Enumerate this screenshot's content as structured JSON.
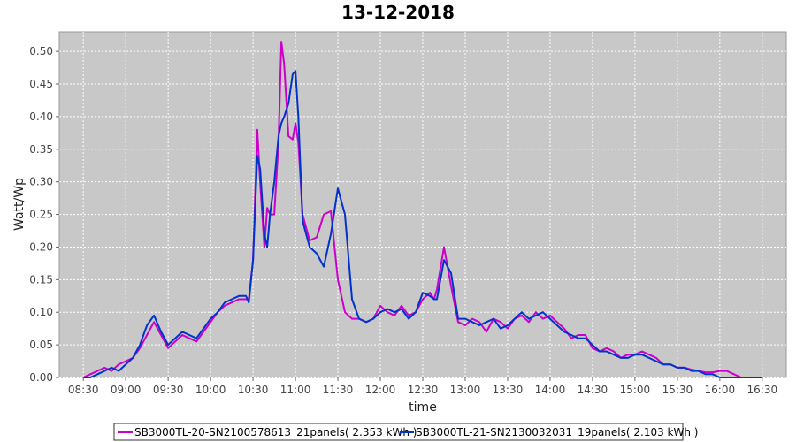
{
  "chart_data": {
    "type": "line",
    "title": "13-12-2018",
    "xlabel": "time",
    "ylabel": "Watt/Wp",
    "x_ticks": [
      "08:30",
      "09:00",
      "09:30",
      "10:00",
      "10:30",
      "11:00",
      "11:30",
      "12:00",
      "12:30",
      "13:00",
      "13:30",
      "14:00",
      "14:30",
      "15:00",
      "15:30",
      "16:00",
      "16:30"
    ],
    "xlim": [
      "08:30",
      "16:30"
    ],
    "y_ticks": [
      "0.00",
      "0.05",
      "0.10",
      "0.15",
      "0.20",
      "0.25",
      "0.30",
      "0.35",
      "0.40",
      "0.45",
      "0.50"
    ],
    "ylim": [
      0,
      0.53
    ],
    "grid": true,
    "legend_position": "bottom-center",
    "colors": {
      "plot_background": "#c8c8c8",
      "grid": "#ffffff"
    },
    "series": [
      {
        "name": "SB3000TL-20-SN2100578613_21panels( 2.353 kWh )",
        "color": "#cc00cc",
        "x": [
          "08:30",
          "08:35",
          "08:40",
          "08:45",
          "08:50",
          "08:55",
          "09:00",
          "09:05",
          "09:10",
          "09:15",
          "09:20",
          "09:25",
          "09:30",
          "09:35",
          "09:40",
          "09:45",
          "09:50",
          "09:55",
          "10:00",
          "10:05",
          "10:10",
          "10:15",
          "10:20",
          "10:25",
          "10:27",
          "10:30",
          "10:33",
          "10:35",
          "10:38",
          "10:40",
          "10:42",
          "10:45",
          "10:48",
          "10:50",
          "10:52",
          "10:55",
          "10:58",
          "11:00",
          "11:02",
          "11:05",
          "11:10",
          "11:15",
          "11:20",
          "11:25",
          "11:30",
          "11:35",
          "11:40",
          "11:45",
          "11:50",
          "11:55",
          "12:00",
          "12:05",
          "12:10",
          "12:15",
          "12:20",
          "12:25",
          "12:30",
          "12:35",
          "12:38",
          "12:40",
          "12:45",
          "12:50",
          "12:55",
          "13:00",
          "13:05",
          "13:10",
          "13:15",
          "13:20",
          "13:25",
          "13:30",
          "13:35",
          "13:40",
          "13:45",
          "13:50",
          "13:55",
          "14:00",
          "14:05",
          "14:10",
          "14:15",
          "14:20",
          "14:25",
          "14:30",
          "14:35",
          "14:40",
          "14:45",
          "14:50",
          "14:55",
          "15:00",
          "15:05",
          "15:10",
          "15:15",
          "15:20",
          "15:25",
          "15:30",
          "15:35",
          "15:40",
          "15:45",
          "15:50",
          "15:55",
          "16:00",
          "16:05",
          "16:10",
          "16:15",
          "16:20",
          "16:25",
          "16:30"
        ],
        "values": [
          0.0,
          0.005,
          0.01,
          0.015,
          0.01,
          0.02,
          0.025,
          0.03,
          0.045,
          0.065,
          0.085,
          0.065,
          0.045,
          0.055,
          0.065,
          0.06,
          0.055,
          0.07,
          0.085,
          0.1,
          0.11,
          0.115,
          0.12,
          0.12,
          0.12,
          0.18,
          0.38,
          0.3,
          0.2,
          0.26,
          0.25,
          0.25,
          0.36,
          0.515,
          0.48,
          0.37,
          0.365,
          0.39,
          0.36,
          0.25,
          0.21,
          0.215,
          0.25,
          0.255,
          0.15,
          0.1,
          0.09,
          0.09,
          0.085,
          0.09,
          0.11,
          0.1,
          0.095,
          0.11,
          0.095,
          0.1,
          0.12,
          0.13,
          0.12,
          0.135,
          0.2,
          0.14,
          0.085,
          0.08,
          0.09,
          0.085,
          0.07,
          0.09,
          0.085,
          0.075,
          0.09,
          0.095,
          0.085,
          0.1,
          0.09,
          0.095,
          0.085,
          0.075,
          0.06,
          0.065,
          0.065,
          0.045,
          0.04,
          0.045,
          0.04,
          0.03,
          0.035,
          0.035,
          0.04,
          0.035,
          0.03,
          0.02,
          0.02,
          0.015,
          0.015,
          0.012,
          0.01,
          0.008,
          0.008,
          0.01,
          0.01,
          0.005,
          0.0,
          0.0,
          0.0,
          0.0
        ]
      },
      {
        "name": "SB3000TL-21-SN2130032031_19panels( 2.103 kWh )",
        "color": "#0033cc",
        "x": [
          "08:30",
          "08:35",
          "08:40",
          "08:45",
          "08:50",
          "08:55",
          "09:00",
          "09:05",
          "09:10",
          "09:15",
          "09:20",
          "09:25",
          "09:30",
          "09:35",
          "09:40",
          "09:45",
          "09:50",
          "09:55",
          "10:00",
          "10:05",
          "10:10",
          "10:15",
          "10:20",
          "10:25",
          "10:27",
          "10:30",
          "10:33",
          "10:35",
          "10:38",
          "10:40",
          "10:42",
          "10:45",
          "10:48",
          "10:50",
          "10:52",
          "10:55",
          "10:58",
          "11:00",
          "11:02",
          "11:05",
          "11:10",
          "11:15",
          "11:20",
          "11:25",
          "11:30",
          "11:35",
          "11:40",
          "11:45",
          "11:50",
          "11:55",
          "12:00",
          "12:05",
          "12:10",
          "12:15",
          "12:20",
          "12:25",
          "12:30",
          "12:35",
          "12:38",
          "12:40",
          "12:45",
          "12:50",
          "12:55",
          "13:00",
          "13:05",
          "13:10",
          "13:15",
          "13:20",
          "13:25",
          "13:30",
          "13:35",
          "13:40",
          "13:45",
          "13:50",
          "13:55",
          "14:00",
          "14:05",
          "14:10",
          "14:15",
          "14:20",
          "14:25",
          "14:30",
          "14:35",
          "14:40",
          "14:45",
          "14:50",
          "14:55",
          "15:00",
          "15:05",
          "15:10",
          "15:15",
          "15:20",
          "15:25",
          "15:30",
          "15:35",
          "15:40",
          "15:45",
          "15:50",
          "15:55",
          "16:00",
          "16:05",
          "16:10",
          "16:15",
          "16:20",
          "16:25",
          "16:30"
        ],
        "values": [
          0.0,
          0.0,
          0.005,
          0.01,
          0.015,
          0.01,
          0.02,
          0.03,
          0.05,
          0.08,
          0.095,
          0.07,
          0.05,
          0.06,
          0.07,
          0.065,
          0.06,
          0.075,
          0.09,
          0.1,
          0.115,
          0.12,
          0.125,
          0.125,
          0.115,
          0.18,
          0.34,
          0.32,
          0.22,
          0.2,
          0.25,
          0.3,
          0.37,
          0.39,
          0.4,
          0.42,
          0.465,
          0.47,
          0.4,
          0.24,
          0.2,
          0.19,
          0.17,
          0.22,
          0.29,
          0.25,
          0.12,
          0.09,
          0.085,
          0.09,
          0.1,
          0.105,
          0.1,
          0.105,
          0.09,
          0.1,
          0.13,
          0.125,
          0.12,
          0.12,
          0.18,
          0.16,
          0.09,
          0.09,
          0.085,
          0.08,
          0.085,
          0.09,
          0.075,
          0.08,
          0.09,
          0.1,
          0.09,
          0.095,
          0.1,
          0.09,
          0.08,
          0.07,
          0.065,
          0.06,
          0.06,
          0.05,
          0.04,
          0.04,
          0.035,
          0.03,
          0.03,
          0.035,
          0.035,
          0.03,
          0.025,
          0.02,
          0.02,
          0.015,
          0.015,
          0.01,
          0.01,
          0.005,
          0.005,
          0.0,
          0.0,
          0.0,
          0.0,
          0.0,
          0.0,
          0.0
        ]
      }
    ]
  }
}
